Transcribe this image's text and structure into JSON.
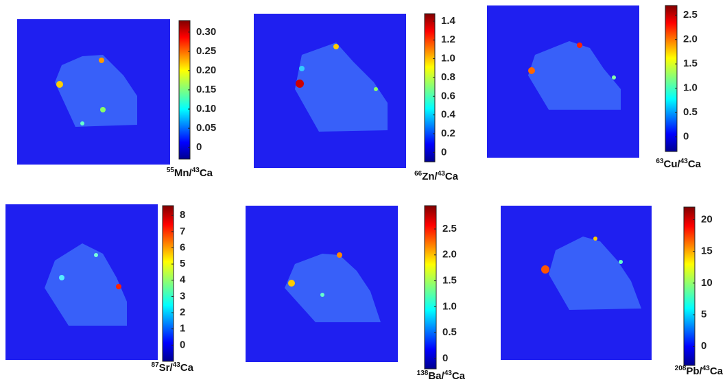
{
  "chart_data": [
    {
      "type": "heatmap",
      "label": [
        "55",
        "Mn/",
        "43",
        "Ca"
      ],
      "zlim": [
        -0.03,
        0.33
      ],
      "zticks": [
        0,
        0.05,
        {
          "value": 0.1,
          "label": "0.10"
        },
        0.15,
        {
          "value": 0.2,
          "label": "0.20"
        },
        0.25,
        {
          "value": 0.3,
          "label": "0.30"
        }
      ]
    },
    {
      "type": "heatmap",
      "label": [
        "66",
        "Zn/",
        "43",
        "Ca"
      ],
      "zlim": [
        -0.1,
        1.48
      ],
      "zticks": [
        0,
        0.2,
        0.4,
        0.6,
        0.8,
        {
          "value": 1,
          "label": "1.0"
        },
        1.2,
        1.4
      ]
    },
    {
      "type": "heatmap",
      "label": [
        "63",
        "Cu/",
        "43",
        "Ca"
      ],
      "zlim": [
        -0.3,
        2.7
      ],
      "zticks": [
        0,
        0.5,
        {
          "value": 1,
          "label": "1.0"
        },
        1.5,
        {
          "value": 2,
          "label": "2.0"
        },
        2.5
      ]
    },
    {
      "type": "heatmap",
      "label": [
        "87",
        "Sr/",
        "43",
        "Ca"
      ],
      "zlim": [
        -1,
        8.6
      ],
      "zticks": [
        0,
        1,
        2,
        3,
        4,
        5,
        6,
        7,
        8
      ]
    },
    {
      "type": "heatmap",
      "label": [
        "138",
        "Ba/",
        "43",
        "Ca"
      ],
      "zlim": [
        -0.2,
        2.95
      ],
      "zticks": [
        0,
        0.5,
        {
          "value": 1,
          "label": "1.0"
        },
        1.5,
        {
          "value": 2,
          "label": "2.0"
        },
        2.5
      ]
    },
    {
      "type": "heatmap",
      "label": [
        "208",
        "Pb/",
        "43",
        "Ca"
      ],
      "zlim": [
        -3,
        22
      ],
      "zticks": [
        0,
        5,
        10,
        15,
        20
      ]
    }
  ]
}
